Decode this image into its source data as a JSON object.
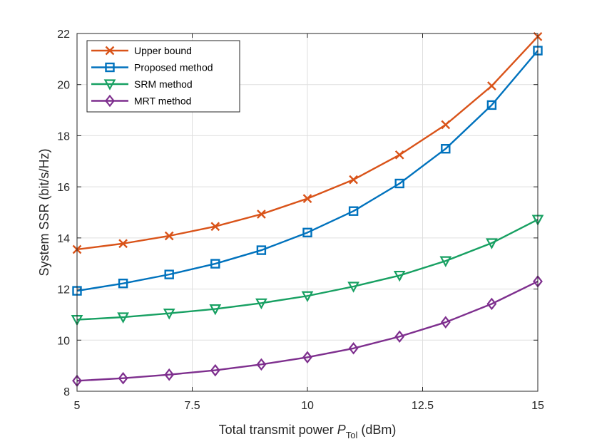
{
  "chart_data": {
    "type": "line",
    "title": "",
    "xlabel_prefix": "Total transmit power ",
    "xlabel_var": "P",
    "xlabel_sub": "Tol",
    "xlabel_suffix": " (dBm)",
    "ylabel": "System SSR (bit/s/Hz)",
    "xlim": [
      5,
      15
    ],
    "ylim": [
      8,
      22
    ],
    "grid": true,
    "legend_position": "top-left",
    "x_ticks": [
      5,
      7.5,
      10,
      12.5,
      15
    ],
    "x_tick_labels": [
      "5",
      "7.5",
      "10",
      "12.5",
      "15"
    ],
    "y_ticks": [
      8,
      10,
      12,
      14,
      16,
      18,
      20,
      22
    ],
    "y_tick_labels": [
      "8",
      "10",
      "12",
      "14",
      "16",
      "18",
      "20",
      "22"
    ],
    "x": [
      5,
      6,
      7,
      8,
      9,
      10,
      11,
      12,
      13,
      14,
      15
    ],
    "series": [
      {
        "name": "Upper bound",
        "color": "#D95319",
        "marker": "x",
        "values": [
          13.55,
          13.78,
          14.08,
          14.45,
          14.93,
          15.54,
          16.28,
          17.25,
          18.43,
          19.95,
          21.88
        ]
      },
      {
        "name": "Proposed method",
        "color": "#0072BD",
        "marker": "square",
        "values": [
          11.93,
          12.22,
          12.57,
          12.99,
          13.52,
          14.21,
          15.05,
          16.13,
          17.49,
          19.2,
          21.33
        ]
      },
      {
        "name": "SRM method",
        "color": "#17A062",
        "marker": "triangle-down",
        "values": [
          10.8,
          10.9,
          11.05,
          11.22,
          11.45,
          11.73,
          12.1,
          12.53,
          13.1,
          13.8,
          14.72
        ]
      },
      {
        "name": "MRT method",
        "color": "#7E2F8E",
        "marker": "diamond",
        "values": [
          8.41,
          8.51,
          8.65,
          8.82,
          9.05,
          9.33,
          9.68,
          10.14,
          10.7,
          11.42,
          12.3
        ]
      }
    ]
  }
}
